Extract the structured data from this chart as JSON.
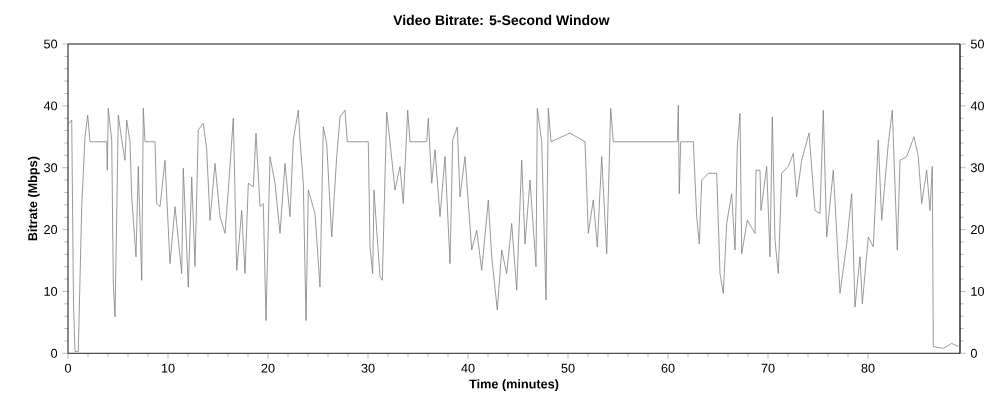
{
  "chart_data": {
    "type": "line",
    "title": "Video Bitrate: 5-Second Window",
    "xlabel": "Time (minutes)",
    "ylabel": "Bitrate (Mbps)",
    "xlim": [
      0,
      89.2
    ],
    "xticks": [
      0,
      10,
      20,
      30,
      40,
      50,
      60,
      70,
      80
    ],
    "ylim": [
      0,
      50
    ],
    "yticks": [
      0,
      10,
      20,
      30,
      40,
      50
    ],
    "y2lim": [
      0,
      50
    ],
    "y2ticks": [
      0,
      10,
      20,
      30,
      40,
      50
    ],
    "marker": "none",
    "line_style": "solid",
    "series": [
      {
        "color": "#808080",
        "x": [
          0,
          0.37,
          0.55,
          0.7,
          1.03,
          1.37,
          1.7,
          1.97,
          2.2,
          3.87,
          3.93,
          4.03,
          4.37,
          4.53,
          4.7,
          4.87,
          5.03,
          5.37,
          5.7,
          5.87,
          6.2,
          6.37,
          6.8,
          7.03,
          7.37,
          7.53,
          7.7,
          8.7,
          8.87,
          9.2,
          9.7,
          10.2,
          10.7,
          11.37,
          11.53,
          12.03,
          12.37,
          12.7,
          13.03,
          13.53,
          13.87,
          14.2,
          14.7,
          15.2,
          15.7,
          16.03,
          16.53,
          16.87,
          17.37,
          17.7,
          18.03,
          18.53,
          18.8,
          19.2,
          19.53,
          19.8,
          20.2,
          20.7,
          21.2,
          21.7,
          22.2,
          22.53,
          23.03,
          23.2,
          23.53,
          23.8,
          24.03,
          24.7,
          25.2,
          25.53,
          25.87,
          26.37,
          26.87,
          27.2,
          27.7,
          27.93,
          30.03,
          30.2,
          30.47,
          30.6,
          30.87,
          31.2,
          31.43,
          31.87,
          32.2,
          32.7,
          33.2,
          33.53,
          33.97,
          34.2,
          35.87,
          36.03,
          36.37,
          36.7,
          37.2,
          37.7,
          38.2,
          38.47,
          38.93,
          39.2,
          39.7,
          40.37,
          40.87,
          41.37,
          42.03,
          42.37,
          42.93,
          43.37,
          43.87,
          44.37,
          44.87,
          45.37,
          45.7,
          46.2,
          46.8,
          46.93,
          47.37,
          47.8,
          48.03,
          48.3,
          50.2,
          51.7,
          52.03,
          52.53,
          52.93,
          53.37,
          53.87,
          54.27,
          54.53,
          60.93,
          61.03,
          61.13,
          61.27,
          62.53,
          62.87,
          63.13,
          63.37,
          64.03,
          64.87,
          65.2,
          65.53,
          65.87,
          66.37,
          66.7,
          66.93,
          67.2,
          67.37,
          67.93,
          68.7,
          68.8,
          69.2,
          69.3,
          69.87,
          70.2,
          70.43,
          70.7,
          71.03,
          71.37,
          72.03,
          72.53,
          72.87,
          73.37,
          74.1,
          74.7,
          75.2,
          75.53,
          75.87,
          76.53,
          77.2,
          77.87,
          78.37,
          78.7,
          79.2,
          79.43,
          80.03,
          80.53,
          81.03,
          81.37,
          82.03,
          82.43,
          82.93,
          83.2,
          83.87,
          84.6,
          85.03,
          85.37,
          85.87,
          86.2,
          86.43,
          86.53,
          87.53,
          88.37,
          89.03
        ],
        "values": [
          37,
          37.7,
          8,
          0.3,
          0.3,
          23.7,
          35,
          38.5,
          34.2,
          34.2,
          29.6,
          39.6,
          34.5,
          11.3,
          5.9,
          22.1,
          38.5,
          34.5,
          31.2,
          37.7,
          34.2,
          25.3,
          15.6,
          30.2,
          11.8,
          39.6,
          34.2,
          34.2,
          24.2,
          23.7,
          31.2,
          14.5,
          23.7,
          12.9,
          29.9,
          10.7,
          28.5,
          14,
          36.1,
          37.2,
          32.9,
          21.5,
          30.7,
          22.1,
          19.4,
          26.4,
          38,
          13.4,
          23.1,
          12.9,
          27.5,
          26.9,
          35.6,
          23.7,
          24.2,
          5.3,
          31.8,
          27.5,
          19.4,
          30.7,
          22.1,
          34.5,
          39.3,
          34.5,
          27.5,
          5.3,
          26.4,
          22.6,
          10.7,
          36.6,
          33.9,
          18.8,
          31.8,
          38.2,
          39.3,
          34.2,
          34.2,
          17.2,
          12.9,
          26.4,
          19.9,
          12.4,
          11.8,
          39,
          34.2,
          26.4,
          30.2,
          24.2,
          39.3,
          34.2,
          34.2,
          38,
          27.5,
          32.9,
          22.1,
          31.8,
          14.5,
          34.5,
          36.6,
          25.3,
          31.8,
          16.7,
          19.9,
          13.4,
          24.8,
          15.6,
          7,
          16.7,
          12.9,
          21,
          10.2,
          31.2,
          17.7,
          28,
          14,
          39.6,
          34.2,
          8.6,
          39.6,
          34.2,
          35.6,
          34.2,
          19.4,
          24.8,
          17.2,
          31.8,
          16.1,
          39.6,
          34.2,
          34.2,
          40.1,
          25.8,
          34.2,
          34.2,
          22.1,
          17.7,
          28,
          29.1,
          29.1,
          12.9,
          9.7,
          21,
          25.8,
          16.7,
          33.4,
          38.8,
          16.1,
          21.5,
          19.4,
          29.6,
          29.6,
          23.1,
          30.2,
          15.6,
          38.2,
          18.3,
          12.9,
          29.1,
          30.2,
          32.3,
          25.3,
          31.2,
          35.6,
          23.1,
          22.6,
          39.3,
          18.8,
          29.6,
          9.7,
          17.7,
          25.8,
          7.5,
          15.6,
          8,
          18.8,
          17.2,
          34.5,
          21.5,
          33.9,
          39.3,
          16.7,
          31.2,
          31.8,
          35,
          31.8,
          24.2,
          29.6,
          23.1,
          30.2,
          1.1,
          0.8,
          1.6,
          1.1
        ]
      }
    ]
  }
}
